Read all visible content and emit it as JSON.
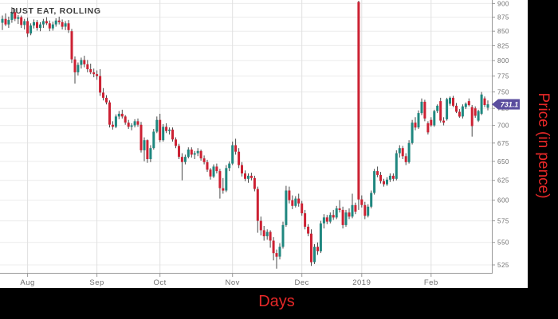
{
  "title": "JUST EAT, ROLLING",
  "axis_titles": {
    "x": "Days",
    "y": "Price (in pence)"
  },
  "price_tag": {
    "value": "731.1",
    "color": "#5a4d9e",
    "text_color": "#ffffff"
  },
  "colors": {
    "up": "#1f877f",
    "down": "#cc2133",
    "wick": "#4a4a4a",
    "hgrid": "#ececec",
    "vgrid": "#e0e0e0",
    "axis": "#999999",
    "tick_text": "#6e6e6e",
    "title_text": "#3d3d3d",
    "axis_title_text": "#e62828",
    "panel_bg": "#ffffff",
    "outer_bg": "#000000"
  },
  "chart_data": {
    "type": "candlestick",
    "title": "JUST EAT, ROLLING",
    "xlabel": "Days",
    "ylabel": "Price (in pence)",
    "log_scale": true,
    "ylim": [
      516.5,
      906.5
    ],
    "yticks": [
      525,
      550,
      575,
      600,
      625,
      650,
      675,
      700,
      725,
      750,
      775,
      800,
      825,
      850,
      875,
      900
    ],
    "xticks": [
      {
        "label": "Aug",
        "index": 8
      },
      {
        "label": "Sep",
        "index": 30
      },
      {
        "label": "Oct",
        "index": 50
      },
      {
        "label": "Nov",
        "index": 73
      },
      {
        "label": "Dec",
        "index": 95
      },
      {
        "label": "2019",
        "index": 114
      },
      {
        "label": "Feb",
        "index": 136
      }
    ],
    "last_close": 731.1,
    "candles": [
      [
        865,
        878,
        852,
        872
      ],
      [
        872,
        882,
        859,
        862
      ],
      [
        862,
        876,
        856,
        870
      ],
      [
        870,
        893,
        865,
        884
      ],
      [
        884,
        890,
        868,
        872
      ],
      [
        872,
        879,
        863,
        875
      ],
      [
        875,
        878,
        856,
        861
      ],
      [
        861,
        872,
        853,
        868
      ],
      [
        868,
        874,
        840,
        846
      ],
      [
        846,
        864,
        843,
        860
      ],
      [
        860,
        871,
        855,
        866
      ],
      [
        866,
        870,
        851,
        856
      ],
      [
        856,
        866,
        850,
        862
      ],
      [
        862,
        872,
        856,
        868
      ],
      [
        868,
        875,
        861,
        864
      ],
      [
        864,
        869,
        850,
        855
      ],
      [
        855,
        867,
        851,
        862
      ],
      [
        862,
        873,
        858,
        869
      ],
      [
        869,
        876,
        862,
        866
      ],
      [
        866,
        871,
        853,
        858
      ],
      [
        858,
        868,
        852,
        864
      ],
      [
        864,
        870,
        847,
        852
      ],
      [
        850,
        854,
        796,
        802
      ],
      [
        802,
        807,
        763,
        781
      ],
      [
        781,
        797,
        776,
        793
      ],
      [
        793,
        805,
        787,
        801
      ],
      [
        801,
        808,
        789,
        794
      ],
      [
        794,
        801,
        781,
        786
      ],
      [
        786,
        795,
        778,
        781
      ],
      [
        781,
        787,
        773,
        778
      ],
      [
        778,
        784,
        769,
        775
      ],
      [
        775,
        786,
        744,
        749
      ],
      [
        749,
        756,
        737,
        741
      ],
      [
        741,
        745,
        731,
        734
      ],
      [
        734,
        737,
        697,
        701
      ],
      [
        701,
        706,
        694,
        698
      ],
      [
        698,
        716,
        696,
        713
      ],
      [
        713,
        721,
        709,
        717
      ],
      [
        717,
        723,
        710,
        713
      ],
      [
        713,
        715,
        701,
        704
      ],
      [
        704,
        708,
        695,
        698
      ],
      [
        698,
        703,
        693,
        700
      ],
      [
        700,
        709,
        697,
        706
      ],
      [
        706,
        710,
        698,
        701
      ],
      [
        701,
        705,
        662,
        665
      ],
      [
        665,
        683,
        650,
        679
      ],
      [
        679,
        680,
        648,
        653
      ],
      [
        653,
        672,
        649,
        668
      ],
      [
        668,
        695,
        666,
        691
      ],
      [
        691,
        713,
        689,
        708
      ],
      [
        708,
        717,
        676,
        679
      ],
      [
        679,
        702,
        677,
        698
      ],
      [
        698,
        703,
        689,
        692
      ],
      [
        692,
        697,
        687,
        694
      ],
      [
        694,
        697,
        677,
        680
      ],
      [
        680,
        683,
        668,
        671
      ],
      [
        671,
        674,
        653,
        656
      ],
      [
        656,
        661,
        625,
        649
      ],
      [
        649,
        659,
        646,
        656
      ],
      [
        656,
        669,
        654,
        666
      ],
      [
        666,
        669,
        655,
        659
      ],
      [
        659,
        664,
        653,
        661
      ],
      [
        661,
        668,
        657,
        664
      ],
      [
        664,
        666,
        651,
        654
      ],
      [
        654,
        658,
        646,
        649
      ],
      [
        649,
        652,
        636,
        639
      ],
      [
        639,
        641,
        626,
        630
      ],
      [
        630,
        646,
        628,
        643
      ],
      [
        643,
        647,
        634,
        637
      ],
      [
        637,
        640,
        602,
        615
      ],
      [
        615,
        628,
        608,
        612
      ],
      [
        612,
        645,
        610,
        641
      ],
      [
        641,
        650,
        637,
        647
      ],
      [
        647,
        677,
        645,
        672
      ],
      [
        672,
        681,
        659,
        663
      ],
      [
        663,
        668,
        641,
        645
      ],
      [
        645,
        649,
        630,
        634
      ],
      [
        634,
        638,
        624,
        627
      ],
      [
        627,
        634,
        622,
        631
      ],
      [
        631,
        635,
        625,
        628
      ],
      [
        628,
        631,
        611,
        614
      ],
      [
        614,
        617,
        561,
        575
      ],
      [
        575,
        580,
        558,
        564
      ],
      [
        564,
        569,
        552,
        557
      ],
      [
        557,
        565,
        553,
        562
      ],
      [
        562,
        564,
        544,
        552
      ],
      [
        552,
        556,
        530,
        538
      ],
      [
        538,
        542,
        521,
        534
      ],
      [
        534,
        549,
        531,
        545
      ],
      [
        545,
        574,
        543,
        570
      ],
      [
        570,
        618,
        568,
        612
      ],
      [
        612,
        617,
        596,
        600
      ],
      [
        600,
        606,
        589,
        593
      ],
      [
        593,
        605,
        591,
        602
      ],
      [
        602,
        608,
        592,
        596
      ],
      [
        596,
        599,
        581,
        584
      ],
      [
        584,
        588,
        565,
        568
      ],
      [
        568,
        571,
        557,
        560
      ],
      [
        560,
        565,
        524,
        528
      ],
      [
        528,
        548,
        526,
        545
      ],
      [
        545,
        550,
        536,
        540
      ],
      [
        540,
        575,
        538,
        572
      ],
      [
        572,
        583,
        566,
        579
      ],
      [
        579,
        582,
        571,
        574
      ],
      [
        574,
        585,
        572,
        582
      ],
      [
        582,
        588,
        576,
        579
      ],
      [
        579,
        593,
        577,
        590
      ],
      [
        590,
        600,
        585,
        588
      ],
      [
        588,
        592,
        566,
        570
      ],
      [
        570,
        588,
        568,
        585
      ],
      [
        585,
        590,
        577,
        580
      ],
      [
        580,
        608,
        578,
        594
      ],
      [
        594,
        597,
        583,
        586
      ],
      [
        903,
        905,
        588,
        601
      ],
      [
        601,
        606,
        591,
        594
      ],
      [
        594,
        598,
        577,
        581
      ],
      [
        581,
        595,
        579,
        592
      ],
      [
        592,
        612,
        590,
        609
      ],
      [
        609,
        640,
        607,
        637
      ],
      [
        637,
        643,
        629,
        632
      ],
      [
        632,
        636,
        621,
        624
      ],
      [
        624,
        627,
        617,
        620
      ],
      [
        620,
        629,
        618,
        626
      ],
      [
        626,
        634,
        623,
        631
      ],
      [
        631,
        634,
        624,
        627
      ],
      [
        627,
        665,
        625,
        661
      ],
      [
        661,
        672,
        655,
        668
      ],
      [
        668,
        671,
        653,
        657
      ],
      [
        657,
        661,
        645,
        649
      ],
      [
        649,
        679,
        647,
        675
      ],
      [
        675,
        708,
        673,
        704
      ],
      [
        704,
        712,
        693,
        697
      ],
      [
        697,
        722,
        695,
        718
      ],
      [
        718,
        740,
        715,
        735
      ],
      [
        735,
        738,
        706,
        710
      ],
      [
        703,
        706,
        687,
        690
      ],
      [
        708,
        712,
        698,
        700
      ],
      [
        700,
        723,
        698,
        721
      ],
      [
        721,
        731,
        718,
        729
      ],
      [
        736,
        741,
        704,
        707
      ],
      [
        707,
        712,
        700,
        704
      ],
      [
        709,
        741,
        707,
        739
      ],
      [
        732,
        743,
        729,
        741
      ],
      [
        741,
        744,
        727,
        729
      ],
      [
        729,
        733,
        718,
        720
      ],
      [
        720,
        724,
        711,
        713
      ],
      [
        713,
        731,
        710,
        728
      ],
      [
        727,
        734,
        724,
        732
      ],
      [
        736,
        740,
        728,
        730
      ],
      [
        727,
        730,
        684,
        699
      ],
      [
        725,
        728,
        711,
        714
      ],
      [
        707,
        723,
        705,
        721
      ],
      [
        717,
        750,
        715,
        746
      ],
      [
        740,
        743,
        727,
        730
      ],
      [
        726,
        737,
        722,
        731.1
      ]
    ]
  }
}
